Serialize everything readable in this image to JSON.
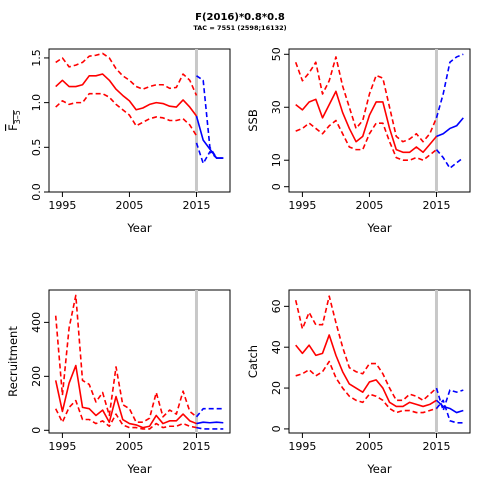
{
  "figure": {
    "title": "F(2016)*0.8*0.8",
    "subtitle": "TAC = 7551 (2598;16132)",
    "colors": {
      "history": "#ff0000",
      "forecast": "#0000ff",
      "vline": "#c8c8c8",
      "axis": "#000000"
    }
  },
  "chart_data": [
    {
      "type": "line",
      "ylabel": "F",
      "ylabel_subscript": "3–5",
      "xlabel": "Year",
      "xlim": [
        1993,
        2020
      ],
      "ylim": [
        0,
        1.6
      ],
      "yticks": [
        0.0,
        0.5,
        1.0,
        1.5
      ],
      "ytick_labels": [
        "0.0",
        "0.5",
        "1.0",
        "1.5"
      ],
      "xticks": [
        1995,
        2005,
        2015
      ],
      "xtick_labels": [
        "1995",
        "2005",
        "2015"
      ],
      "vline": 2015,
      "series": [
        {
          "role": "history",
          "style": "solid",
          "x": [
            1994,
            1995,
            1996,
            1997,
            1998,
            1999,
            2000,
            2001,
            2002,
            2003,
            2004,
            2005,
            2006,
            2007,
            2008,
            2009,
            2010,
            2011,
            2012,
            2013,
            2014,
            2015
          ],
          "y": [
            1.18,
            1.25,
            1.18,
            1.18,
            1.2,
            1.3,
            1.3,
            1.32,
            1.25,
            1.15,
            1.08,
            1.02,
            0.92,
            0.94,
            0.98,
            1.0,
            0.99,
            0.96,
            0.95,
            1.03,
            0.95,
            0.85
          ]
        },
        {
          "role": "history",
          "style": "dashed",
          "x": [
            1994,
            1995,
            1996,
            1997,
            1998,
            1999,
            2000,
            2001,
            2002,
            2003,
            2004,
            2005,
            2006,
            2007,
            2008,
            2009,
            2010,
            2011,
            2012,
            2013,
            2014,
            2015
          ],
          "y": [
            1.45,
            1.5,
            1.4,
            1.42,
            1.45,
            1.52,
            1.53,
            1.55,
            1.5,
            1.38,
            1.3,
            1.25,
            1.18,
            1.15,
            1.18,
            1.2,
            1.2,
            1.16,
            1.17,
            1.32,
            1.25,
            1.08
          ]
        },
        {
          "role": "history",
          "style": "dashed",
          "x": [
            1994,
            1995,
            1996,
            1997,
            1998,
            1999,
            2000,
            2001,
            2002,
            2003,
            2004,
            2005,
            2006,
            2007,
            2008,
            2009,
            2010,
            2011,
            2012,
            2013,
            2014,
            2015
          ],
          "y": [
            0.95,
            1.02,
            0.98,
            1.0,
            1.0,
            1.1,
            1.1,
            1.1,
            1.06,
            0.98,
            0.92,
            0.86,
            0.74,
            0.78,
            0.82,
            0.84,
            0.83,
            0.8,
            0.8,
            0.82,
            0.75,
            0.63
          ]
        },
        {
          "role": "forecast",
          "style": "solid",
          "x": [
            2015,
            2016,
            2017,
            2018,
            2019
          ],
          "y": [
            0.85,
            0.58,
            0.48,
            0.38,
            0.38
          ]
        },
        {
          "role": "forecast",
          "style": "dashed",
          "x": [
            2015,
            2016,
            2017,
            2018,
            2019
          ],
          "y": [
            1.3,
            1.25,
            0.5,
            0.38,
            0.38
          ]
        },
        {
          "role": "forecast",
          "style": "dashed",
          "x": [
            2015,
            2016,
            2017,
            2018,
            2019
          ],
          "y": [
            0.55,
            0.32,
            0.45,
            0.38,
            0.38
          ]
        }
      ]
    },
    {
      "type": "line",
      "ylabel": "SSB",
      "xlabel": "Year",
      "xlim": [
        1993,
        2020
      ],
      "ylim": [
        -2,
        52
      ],
      "yticks": [
        0,
        10,
        30,
        50
      ],
      "ytick_labels": [
        "0",
        "10",
        "30",
        "50"
      ],
      "xticks": [
        1995,
        2005,
        2015
      ],
      "xtick_labels": [
        "1995",
        "2005",
        "2015"
      ],
      "vline": 2015,
      "series": [
        {
          "role": "history",
          "style": "solid",
          "x": [
            1994,
            1995,
            1996,
            1997,
            1998,
            1999,
            2000,
            2001,
            2002,
            2003,
            2004,
            2005,
            2006,
            2007,
            2008,
            2009,
            2010,
            2011,
            2012,
            2013,
            2014,
            2015
          ],
          "y": [
            31,
            29,
            32,
            33,
            26,
            31,
            36,
            28,
            22,
            17,
            19,
            27,
            32,
            32,
            22,
            14,
            13,
            13,
            15,
            13,
            16,
            19
          ]
        },
        {
          "role": "history",
          "style": "dashed",
          "x": [
            1994,
            1995,
            1996,
            1997,
            1998,
            1999,
            2000,
            2001,
            2002,
            2003,
            2004,
            2005,
            2006,
            2007,
            2008,
            2009,
            2010,
            2011,
            2012,
            2013,
            2014,
            2015
          ],
          "y": [
            47,
            40,
            43,
            47,
            35,
            40,
            49,
            38,
            30,
            22,
            25,
            35,
            42,
            41,
            30,
            19,
            17,
            18,
            20,
            17,
            20,
            26
          ]
        },
        {
          "role": "history",
          "style": "dashed",
          "x": [
            1994,
            1995,
            1996,
            1997,
            1998,
            1999,
            2000,
            2001,
            2002,
            2003,
            2004,
            2005,
            2006,
            2007,
            2008,
            2009,
            2010,
            2011,
            2012,
            2013,
            2014,
            2015
          ],
          "y": [
            21,
            22,
            24,
            22,
            20,
            23,
            25,
            20,
            15,
            14,
            14,
            20,
            24,
            24,
            17,
            11,
            10,
            10,
            11,
            10,
            12,
            14
          ]
        },
        {
          "role": "forecast",
          "style": "solid",
          "x": [
            2015,
            2016,
            2017,
            2018,
            2019
          ],
          "y": [
            19,
            20,
            22,
            23,
            26
          ]
        },
        {
          "role": "forecast",
          "style": "dashed",
          "x": [
            2015,
            2016,
            2017,
            2018,
            2019
          ],
          "y": [
            26,
            35,
            47,
            49,
            50
          ]
        },
        {
          "role": "forecast",
          "style": "dashed",
          "x": [
            2015,
            2016,
            2017,
            2018,
            2019
          ],
          "y": [
            14,
            11,
            7,
            9,
            11
          ]
        }
      ]
    },
    {
      "type": "line",
      "ylabel": "Recruitment",
      "xlabel": "Year",
      "xlim": [
        1993,
        2020
      ],
      "ylim": [
        -10,
        520
      ],
      "yticks": [
        0,
        200,
        400
      ],
      "ytick_labels": [
        "0",
        "200",
        "400"
      ],
      "xticks": [
        1995,
        2005,
        2015
      ],
      "xtick_labels": [
        "1995",
        "2005",
        "2015"
      ],
      "vline": 2015,
      "series": [
        {
          "role": "history",
          "style": "solid",
          "x": [
            1994,
            1995,
            1996,
            1997,
            1998,
            1999,
            2000,
            2001,
            2002,
            2003,
            2004,
            2005,
            2006,
            2007,
            2008,
            2009,
            2010,
            2011,
            2012,
            2013,
            2014,
            2015
          ],
          "y": [
            185,
            70,
            175,
            240,
            85,
            80,
            55,
            75,
            30,
            125,
            40,
            25,
            20,
            10,
            15,
            55,
            25,
            35,
            35,
            60,
            35,
            25
          ]
        },
        {
          "role": "history",
          "style": "dashed",
          "x": [
            1994,
            1995,
            1996,
            1997,
            1998,
            1999,
            2000,
            2001,
            2002,
            2003,
            2004,
            2005,
            2006,
            2007,
            2008,
            2009,
            2010,
            2011,
            2012,
            2013,
            2014,
            2015
          ],
          "y": [
            425,
            130,
            380,
            500,
            185,
            170,
            105,
            140,
            55,
            235,
            95,
            80,
            30,
            30,
            45,
            140,
            50,
            75,
            60,
            145,
            70,
            50
          ]
        },
        {
          "role": "history",
          "style": "dashed",
          "x": [
            1994,
            1995,
            1996,
            1997,
            1998,
            1999,
            2000,
            2001,
            2002,
            2003,
            2004,
            2005,
            2006,
            2007,
            2008,
            2009,
            2010,
            2011,
            2012,
            2013,
            2014,
            2015
          ],
          "y": [
            80,
            30,
            85,
            110,
            40,
            40,
            25,
            35,
            15,
            60,
            20,
            10,
            10,
            5,
            5,
            25,
            10,
            15,
            15,
            25,
            15,
            10
          ]
        },
        {
          "role": "forecast",
          "style": "solid",
          "x": [
            2015,
            2016,
            2017,
            2018,
            2019
          ],
          "y": [
            25,
            30,
            28,
            30,
            28
          ]
        },
        {
          "role": "forecast",
          "style": "dashed",
          "x": [
            2015,
            2016,
            2017,
            2018,
            2019
          ],
          "y": [
            50,
            80,
            80,
            80,
            80
          ]
        },
        {
          "role": "forecast",
          "style": "dashed",
          "x": [
            2015,
            2016,
            2017,
            2018,
            2019
          ],
          "y": [
            10,
            5,
            5,
            5,
            5
          ]
        }
      ]
    },
    {
      "type": "line",
      "ylabel": "Catch",
      "xlabel": "Year",
      "xlim": [
        1993,
        2020
      ],
      "ylim": [
        -2,
        68
      ],
      "yticks": [
        0,
        20,
        40,
        60
      ],
      "ytick_labels": [
        "0",
        "20",
        "40",
        "60"
      ],
      "xticks": [
        1995,
        2005,
        2015
      ],
      "xtick_labels": [
        "1995",
        "2005",
        "2015"
      ],
      "vline": 2015,
      "series": [
        {
          "role": "history",
          "style": "solid",
          "x": [
            1994,
            1995,
            1996,
            1997,
            1998,
            1999,
            2000,
            2001,
            2002,
            2003,
            2004,
            2005,
            2006,
            2007,
            2008,
            2009,
            2010,
            2011,
            2012,
            2013,
            2014,
            2015
          ],
          "y": [
            41,
            37,
            41,
            36,
            37,
            46,
            36,
            28,
            22,
            20,
            18,
            23,
            24,
            20,
            13,
            11,
            11,
            13,
            12,
            11,
            12,
            14
          ]
        },
        {
          "role": "history",
          "style": "dashed",
          "x": [
            1994,
            1995,
            1996,
            1997,
            1998,
            1999,
            2000,
            2001,
            2002,
            2003,
            2004,
            2005,
            2006,
            2007,
            2008,
            2009,
            2010,
            2011,
            2012,
            2013,
            2014,
            2015
          ],
          "y": [
            63,
            49,
            57,
            51,
            51,
            65,
            52,
            40,
            30,
            28,
            27,
            32,
            32,
            27,
            20,
            14,
            14,
            17,
            16,
            14,
            17,
            20
          ]
        },
        {
          "role": "history",
          "style": "dashed",
          "x": [
            1994,
            1995,
            1996,
            1997,
            1998,
            1999,
            2000,
            2001,
            2002,
            2003,
            2004,
            2005,
            2006,
            2007,
            2008,
            2009,
            2010,
            2011,
            2012,
            2013,
            2014,
            2015
          ],
          "y": [
            26,
            27,
            29,
            26,
            28,
            33,
            25,
            20,
            16,
            14,
            13,
            17,
            16,
            14,
            10,
            8,
            9,
            9,
            8,
            8,
            9,
            10
          ]
        },
        {
          "role": "forecast",
          "style": "solid",
          "x": [
            2015,
            2016,
            2017,
            2018,
            2019
          ],
          "y": [
            14,
            11,
            10,
            8,
            9
          ]
        },
        {
          "role": "forecast",
          "style": "dashed",
          "x": [
            2015,
            2016,
            2017,
            2018,
            2019
          ],
          "y": [
            20,
            9,
            19,
            18,
            19
          ]
        },
        {
          "role": "forecast",
          "style": "dashed",
          "x": [
            2015,
            2016,
            2017,
            2018,
            2019
          ],
          "y": [
            10,
            14,
            4,
            3,
            3
          ]
        }
      ]
    }
  ]
}
